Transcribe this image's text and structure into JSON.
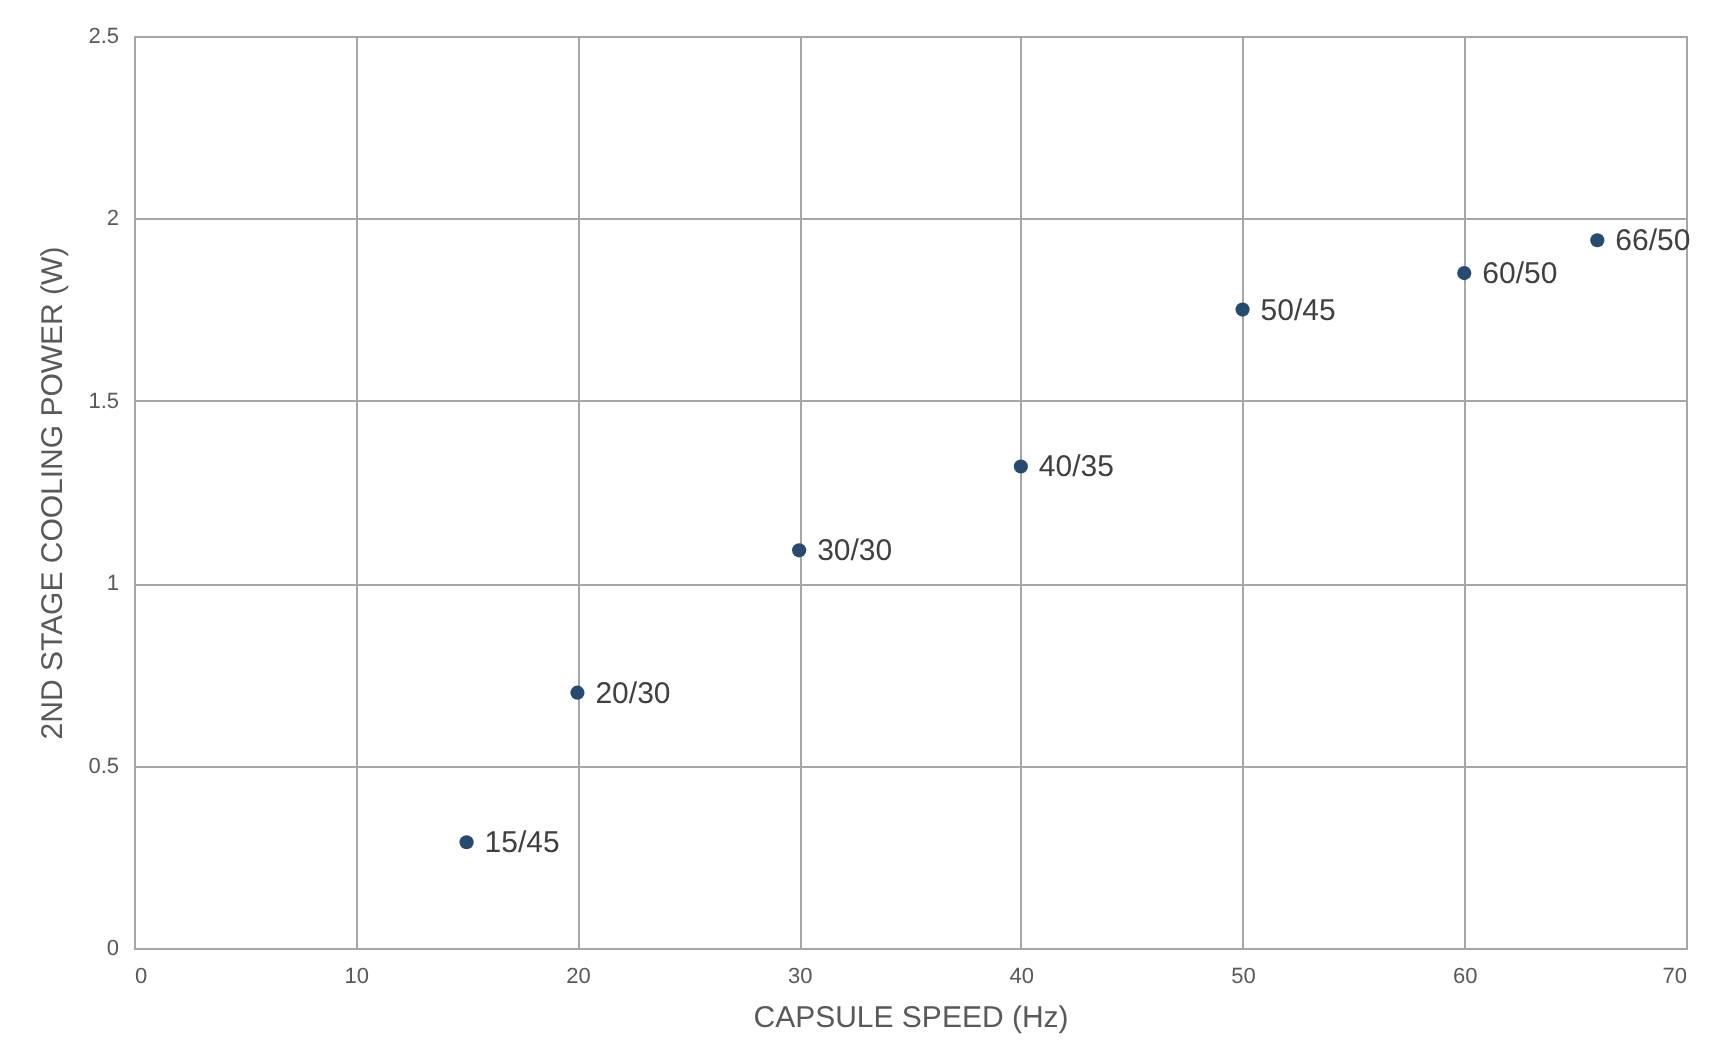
{
  "chart_data": {
    "type": "scatter",
    "xlabel": "CAPSULE SPEED (Hz)",
    "ylabel": "2ND STAGE COOLING POWER (W)",
    "x": [
      15,
      20,
      30,
      40,
      50,
      60,
      66
    ],
    "series": [
      {
        "color": "#264a70",
        "values": [
          0.29,
          0.7,
          1.09,
          1.32,
          1.75,
          1.85,
          1.94
        ]
      }
    ],
    "annotations": [
      {
        "text": "15/45",
        "x": 15,
        "y": 0.29
      },
      {
        "text": "20/30",
        "x": 20,
        "y": 0.7
      },
      {
        "text": "30/30",
        "x": 30,
        "y": 1.09
      },
      {
        "text": "40/35",
        "x": 40,
        "y": 1.32
      },
      {
        "text": "50/45",
        "x": 50,
        "y": 1.75
      },
      {
        "text": "60/50",
        "x": 60,
        "y": 1.85
      },
      {
        "text": "66/50",
        "x": 66,
        "y": 1.94
      }
    ],
    "xlim": [
      0,
      70
    ],
    "xticks": [
      0,
      10,
      20,
      30,
      40,
      50,
      60,
      70
    ],
    "ylim": [
      0,
      2.5
    ],
    "yticks": [
      0,
      0.5,
      1,
      1.5,
      2,
      2.5
    ],
    "grid": true,
    "marker": "circle"
  }
}
